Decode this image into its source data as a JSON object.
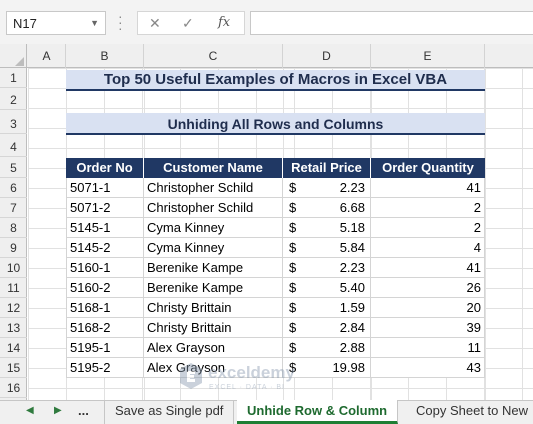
{
  "formula_bar": {
    "name_box": "N17",
    "fx_label": "fx",
    "formula": ""
  },
  "columns": [
    "A",
    "B",
    "C",
    "D",
    "E"
  ],
  "rows": [
    "1",
    "2",
    "3",
    "4",
    "5",
    "6",
    "7",
    "8",
    "9",
    "10",
    "11",
    "12",
    "13",
    "14",
    "15",
    "16"
  ],
  "sheet": {
    "title": "Top 50 Useful Examples of Macros in Excel VBA",
    "subtitle": "Unhiding All Rows and Columns",
    "headers": [
      "Order No",
      "Customer Name",
      "Retail Price",
      "Order Quantity"
    ],
    "currency_symbol": "$",
    "records": [
      {
        "order": "5071-1",
        "customer": "Christopher Schild",
        "price": "2.23",
        "qty": "41"
      },
      {
        "order": "5071-2",
        "customer": "Christopher Schild",
        "price": "6.68",
        "qty": "2"
      },
      {
        "order": "5145-1",
        "customer": "Cyma Kinney",
        "price": "5.18",
        "qty": "2"
      },
      {
        "order": "5145-2",
        "customer": "Cyma Kinney",
        "price": "5.84",
        "qty": "4"
      },
      {
        "order": "5160-1",
        "customer": "Berenike Kampe",
        "price": "2.23",
        "qty": "41"
      },
      {
        "order": "5160-2",
        "customer": "Berenike Kampe",
        "price": "5.40",
        "qty": "26"
      },
      {
        "order": "5168-1",
        "customer": "Christy Brittain",
        "price": "1.59",
        "qty": "20"
      },
      {
        "order": "5168-2",
        "customer": "Christy Brittain",
        "price": "2.84",
        "qty": "39"
      },
      {
        "order": "5195-1",
        "customer": "Alex Grayson",
        "price": "2.88",
        "qty": "11"
      },
      {
        "order": "5195-2",
        "customer": "Alex Grayson",
        "price": "19.98",
        "qty": "43"
      }
    ]
  },
  "tabs": {
    "more": "...",
    "items": [
      "Save as Single pdf",
      "Unhide Row & Column",
      "Copy Sheet to New"
    ],
    "active": "Unhide Row & Column"
  },
  "watermark": {
    "name": "exceldemy",
    "tagline": "EXCEL · DATA · BI"
  },
  "colors": {
    "header_fill": "#203864",
    "title_fill": "#d9e1f2",
    "active_tab": "#1e7e34"
  }
}
